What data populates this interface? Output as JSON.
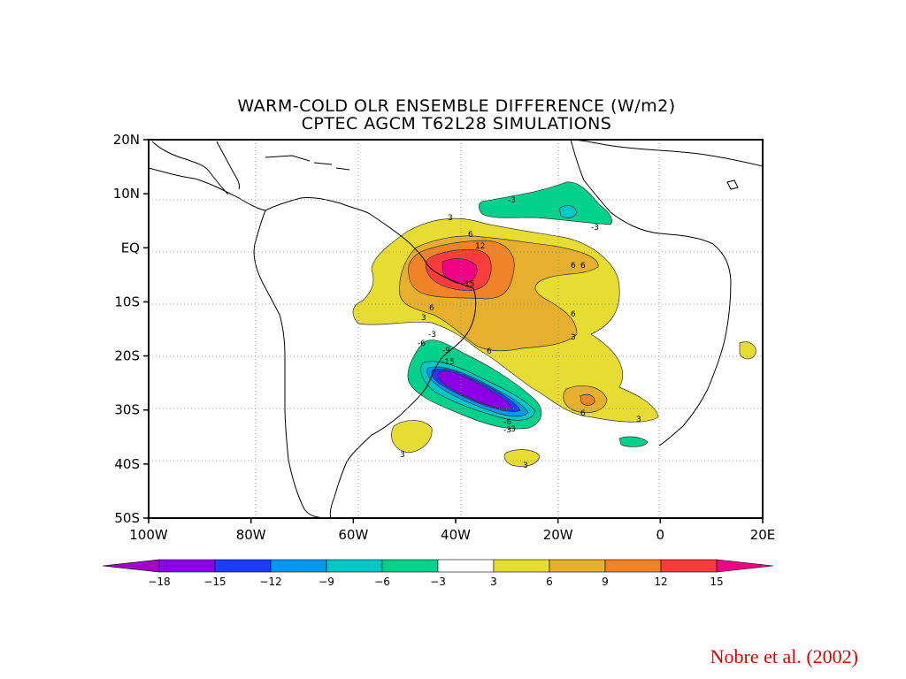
{
  "title_line1": "WARM-COLD OLR ENSEMBLE DIFFERENCE (W/m2)",
  "title_line2": "CPTEC AGCM T62L28 SIMULATIONS",
  "citation": "Nobre et al. (2002)",
  "map": {
    "lon_range": [
      -100,
      20
    ],
    "lat_range": [
      -50,
      20
    ],
    "lon_ticks": [
      {
        "value": -100,
        "label": "100W"
      },
      {
        "value": -80,
        "label": "80W"
      },
      {
        "value": -60,
        "label": "60W"
      },
      {
        "value": -40,
        "label": "40W"
      },
      {
        "value": -20,
        "label": "20W"
      },
      {
        "value": 0,
        "label": "0"
      },
      {
        "value": 20,
        "label": "20E"
      }
    ],
    "lat_ticks": [
      {
        "value": 20,
        "label": "20N"
      },
      {
        "value": 10,
        "label": "10N"
      },
      {
        "value": 0,
        "label": "EQ"
      },
      {
        "value": -10,
        "label": "10S"
      },
      {
        "value": -20,
        "label": "20S"
      },
      {
        "value": -30,
        "label": "30S"
      },
      {
        "value": -40,
        "label": "40S"
      },
      {
        "value": -50,
        "label": "50S"
      }
    ],
    "grid": "dotted"
  },
  "colorbar": {
    "bins": [
      {
        "color": "#8b00e6"
      },
      {
        "color": "#1e3cff"
      },
      {
        "color": "#0099ee"
      },
      {
        "color": "#00c8c8"
      },
      {
        "color": "#00d28c"
      },
      {
        "color": "#ffffff"
      },
      {
        "color": "#e6dc32"
      },
      {
        "color": "#e6af2d"
      },
      {
        "color": "#f08228"
      },
      {
        "color": "#fa3c3c"
      }
    ],
    "low_end_color": "#a000c8",
    "high_end_color": "#f00082",
    "labels": [
      "-18",
      "-15",
      "-12",
      "-9",
      "-6",
      "-3",
      "3",
      "6",
      "9",
      "12",
      "15"
    ]
  },
  "contour_labels": [
    {
      "text": "3"
    },
    {
      "text": "6"
    },
    {
      "text": "12"
    },
    {
      "text": "15"
    },
    {
      "text": "6"
    },
    {
      "text": "6"
    },
    {
      "text": "6"
    },
    {
      "text": "3"
    },
    {
      "text": "6"
    },
    {
      "text": "3"
    },
    {
      "text": "6"
    },
    {
      "text": "-3"
    },
    {
      "text": "-3"
    },
    {
      "text": "-3"
    },
    {
      "text": "-6"
    },
    {
      "text": "-9"
    },
    {
      "text": "-15"
    },
    {
      "text": "-6"
    },
    {
      "text": "-3"
    },
    {
      "text": "3"
    },
    {
      "text": "-3"
    },
    {
      "text": "6"
    },
    {
      "text": "3"
    },
    {
      "text": "3"
    }
  ]
}
